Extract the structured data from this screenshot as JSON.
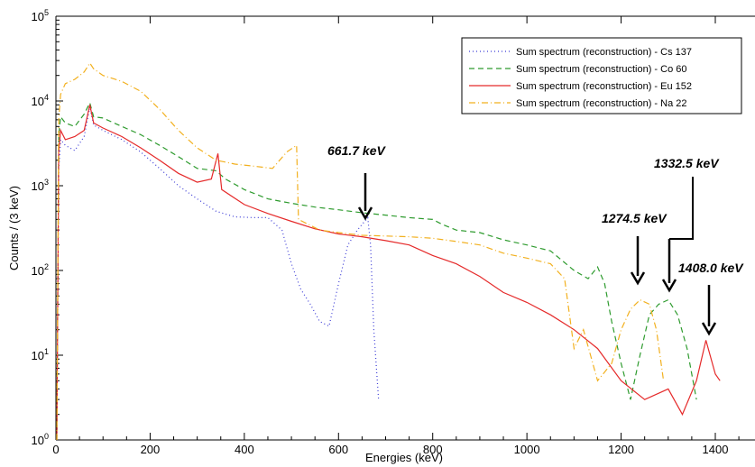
{
  "chart_data": {
    "type": "line",
    "title": "",
    "xlabel": "Energies (keV)",
    "ylabel": "Counts / (3 keV)",
    "xlim": [
      0,
      1500
    ],
    "ylim_log10": [
      0,
      5
    ],
    "y_scale": "log",
    "grid": false,
    "legend_position": "top-right",
    "x_ticks": [
      "0",
      "200",
      "400",
      "600",
      "800",
      "1000",
      "1200",
      "1400"
    ],
    "x_tick_values": [
      0,
      200,
      400,
      600,
      800,
      1000,
      1200,
      1400
    ],
    "y_ticks": [
      {
        "base": "10",
        "exp": "0",
        "value": 1
      },
      {
        "base": "10",
        "exp": "1",
        "value": 10
      },
      {
        "base": "10",
        "exp": "2",
        "value": 100
      },
      {
        "base": "10",
        "exp": "3",
        "value": 1000
      },
      {
        "base": "10",
        "exp": "4",
        "value": 10000
      },
      {
        "base": "10",
        "exp": "5",
        "value": 100000
      }
    ],
    "series": [
      {
        "name": "Sum spectrum (reconstruction) - Cs 137",
        "color": "#3a3ad6",
        "dash": "1,3",
        "points": [
          [
            2,
            1
          ],
          [
            6,
            1500
          ],
          [
            10,
            3500
          ],
          [
            20,
            3000
          ],
          [
            40,
            2600
          ],
          [
            60,
            3800
          ],
          [
            72,
            8500
          ],
          [
            80,
            5200
          ],
          [
            100,
            4500
          ],
          [
            140,
            3500
          ],
          [
            180,
            2500
          ],
          [
            220,
            1600
          ],
          [
            260,
            1000
          ],
          [
            300,
            700
          ],
          [
            340,
            500
          ],
          [
            380,
            430
          ],
          [
            420,
            420
          ],
          [
            450,
            420
          ],
          [
            480,
            300
          ],
          [
            500,
            120
          ],
          [
            520,
            60
          ],
          [
            540,
            40
          ],
          [
            560,
            25
          ],
          [
            580,
            22
          ],
          [
            600,
            70
          ],
          [
            620,
            200
          ],
          [
            640,
            300
          ],
          [
            650,
            350
          ],
          [
            662,
            420
          ],
          [
            668,
            200
          ],
          [
            675,
            20
          ],
          [
            685,
            3
          ]
        ]
      },
      {
        "name": "Sum spectrum (reconstruction) - Co 60",
        "color": "#2e9b2e",
        "dash": "6,4",
        "points": [
          [
            2,
            1
          ],
          [
            6,
            4000
          ],
          [
            10,
            6500
          ],
          [
            20,
            5500
          ],
          [
            40,
            5000
          ],
          [
            60,
            7000
          ],
          [
            72,
            9500
          ],
          [
            80,
            6500
          ],
          [
            100,
            6300
          ],
          [
            140,
            5000
          ],
          [
            180,
            4000
          ],
          [
            220,
            3000
          ],
          [
            260,
            2200
          ],
          [
            300,
            1600
          ],
          [
            340,
            1500
          ],
          [
            360,
            1200
          ],
          [
            400,
            900
          ],
          [
            450,
            700
          ],
          [
            500,
            620
          ],
          [
            550,
            560
          ],
          [
            600,
            520
          ],
          [
            650,
            480
          ],
          [
            700,
            450
          ],
          [
            750,
            420
          ],
          [
            800,
            400
          ],
          [
            820,
            350
          ],
          [
            850,
            300
          ],
          [
            900,
            280
          ],
          [
            950,
            230
          ],
          [
            1000,
            200
          ],
          [
            1050,
            170
          ],
          [
            1100,
            100
          ],
          [
            1130,
            80
          ],
          [
            1150,
            110
          ],
          [
            1165,
            70
          ],
          [
            1180,
            25
          ],
          [
            1200,
            8
          ],
          [
            1220,
            3
          ],
          [
            1240,
            10
          ],
          [
            1260,
            30
          ],
          [
            1280,
            40
          ],
          [
            1300,
            45
          ],
          [
            1320,
            30
          ],
          [
            1340,
            12
          ],
          [
            1360,
            3
          ]
        ]
      },
      {
        "name": "Sum spectrum (reconstruction) - Eu 152",
        "color": "#e52a2a",
        "dash": "",
        "points": [
          [
            2,
            1
          ],
          [
            6,
            2500
          ],
          [
            10,
            4500
          ],
          [
            20,
            3500
          ],
          [
            40,
            3800
          ],
          [
            60,
            4500
          ],
          [
            72,
            9000
          ],
          [
            80,
            5500
          ],
          [
            100,
            4800
          ],
          [
            140,
            3800
          ],
          [
            180,
            2800
          ],
          [
            220,
            2000
          ],
          [
            260,
            1400
          ],
          [
            300,
            1100
          ],
          [
            330,
            1200
          ],
          [
            344,
            2400
          ],
          [
            352,
            900
          ],
          [
            400,
            600
          ],
          [
            450,
            470
          ],
          [
            500,
            380
          ],
          [
            550,
            310
          ],
          [
            600,
            270
          ],
          [
            650,
            250
          ],
          [
            700,
            225
          ],
          [
            750,
            200
          ],
          [
            800,
            150
          ],
          [
            850,
            120
          ],
          [
            900,
            85
          ],
          [
            950,
            55
          ],
          [
            1000,
            42
          ],
          [
            1050,
            30
          ],
          [
            1100,
            20
          ],
          [
            1150,
            12
          ],
          [
            1200,
            5
          ],
          [
            1250,
            3
          ],
          [
            1300,
            4
          ],
          [
            1330,
            2
          ],
          [
            1360,
            5
          ],
          [
            1380,
            15
          ],
          [
            1400,
            6
          ],
          [
            1410,
            5
          ]
        ]
      },
      {
        "name": "Sum spectrum (reconstruction) - Na 22",
        "color": "#f2b01e",
        "dash": "7,3,1,3",
        "points": [
          [
            2,
            1
          ],
          [
            6,
            6000
          ],
          [
            10,
            12000
          ],
          [
            20,
            16000
          ],
          [
            40,
            18000
          ],
          [
            60,
            22000
          ],
          [
            72,
            28000
          ],
          [
            80,
            24000
          ],
          [
            100,
            20000
          ],
          [
            140,
            17000
          ],
          [
            180,
            13000
          ],
          [
            220,
            8000
          ],
          [
            260,
            4500
          ],
          [
            300,
            2800
          ],
          [
            340,
            2000
          ],
          [
            380,
            1800
          ],
          [
            420,
            1700
          ],
          [
            460,
            1600
          ],
          [
            490,
            2500
          ],
          [
            511,
            3000
          ],
          [
            515,
            400
          ],
          [
            560,
            300
          ],
          [
            600,
            280
          ],
          [
            650,
            260
          ],
          [
            700,
            255
          ],
          [
            750,
            250
          ],
          [
            800,
            240
          ],
          [
            850,
            220
          ],
          [
            900,
            200
          ],
          [
            950,
            160
          ],
          [
            1000,
            140
          ],
          [
            1050,
            120
          ],
          [
            1080,
            80
          ],
          [
            1100,
            12
          ],
          [
            1120,
            20
          ],
          [
            1150,
            5
          ],
          [
            1180,
            8
          ],
          [
            1200,
            20
          ],
          [
            1220,
            35
          ],
          [
            1240,
            45
          ],
          [
            1260,
            40
          ],
          [
            1275,
            20
          ],
          [
            1290,
            5
          ]
        ]
      }
    ],
    "annotations": [
      {
        "label": "661.7 keV",
        "x": 661.7
      },
      {
        "label": "1274.5 keV",
        "x": 1274.5
      },
      {
        "label": "1332.5 keV",
        "x": 1332.5
      },
      {
        "label": "1408.0 keV",
        "x": 1408.0
      }
    ]
  }
}
